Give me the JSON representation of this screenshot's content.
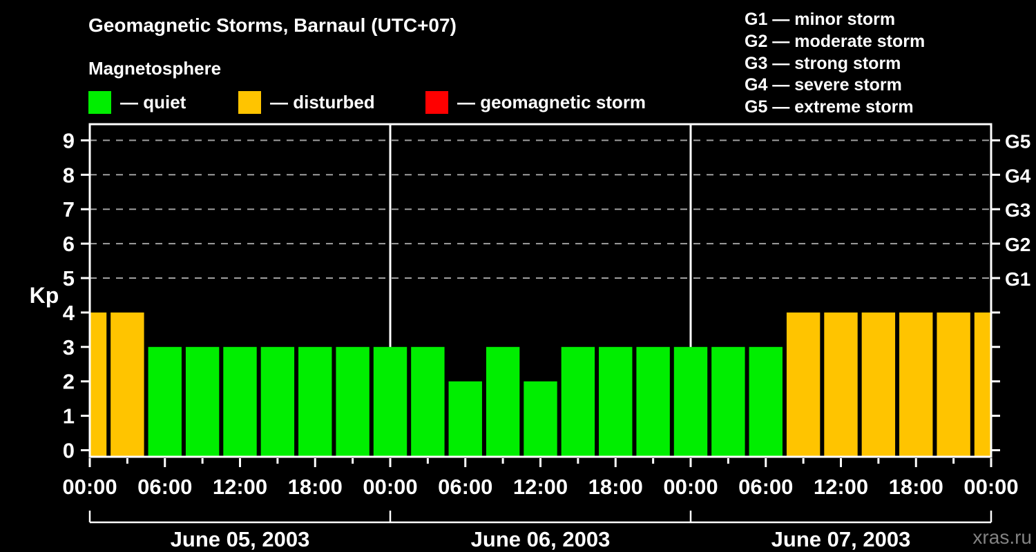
{
  "chart_data": {
    "type": "bar",
    "title": "Geomagnetic Storms, Barnaul (UTC+07)",
    "subtitle": "Magnetosphere",
    "ylabel": "Kp",
    "ylim": [
      0,
      9
    ],
    "yticks": [
      0,
      1,
      2,
      3,
      4,
      5,
      6,
      7,
      8,
      9
    ],
    "grid_dashed_at": [
      5,
      6,
      7,
      8,
      9
    ],
    "right_axis": [
      {
        "kp": 5,
        "label": "G1"
      },
      {
        "kp": 6,
        "label": "G2"
      },
      {
        "kp": 7,
        "label": "G3"
      },
      {
        "kp": 8,
        "label": "G4"
      },
      {
        "kp": 9,
        "label": "G5"
      }
    ],
    "interval_hours": 3,
    "x_major_tick_hours": 6,
    "x_tick_label_cycle": [
      "00:00",
      "06:00",
      "12:00",
      "18:00"
    ],
    "days": [
      {
        "date": "June 05, 2003",
        "kp": [
          4,
          4,
          3,
          3,
          3,
          3,
          3,
          3
        ]
      },
      {
        "date": "June 06, 2003",
        "kp": [
          3,
          3,
          2,
          3,
          2,
          3,
          3,
          3
        ]
      },
      {
        "date": "June 07, 2003",
        "kp": [
          3,
          3,
          3,
          4,
          4,
          4,
          4,
          4
        ]
      }
    ],
    "next_day_first_kp": 4,
    "color_rules": {
      "quiet_max": 3,
      "disturbed_max": 4,
      "quiet": "#00EE00",
      "disturbed": "#FFC400",
      "storm": "#FF0000"
    },
    "legend_position": "top-left"
  },
  "legend": {
    "items": [
      {
        "label": "— quiet",
        "color": "#00EE00"
      },
      {
        "label": "— disturbed",
        "color": "#FFC400"
      },
      {
        "label": "— geomagnetic storm",
        "color": "#FF0000"
      }
    ]
  },
  "g_legend": {
    "items": [
      "G1 — minor storm",
      "G2 — moderate storm",
      "G3 — strong storm",
      "G4 — severe storm",
      "G5 — extreme storm"
    ]
  },
  "watermark": "xras.ru"
}
